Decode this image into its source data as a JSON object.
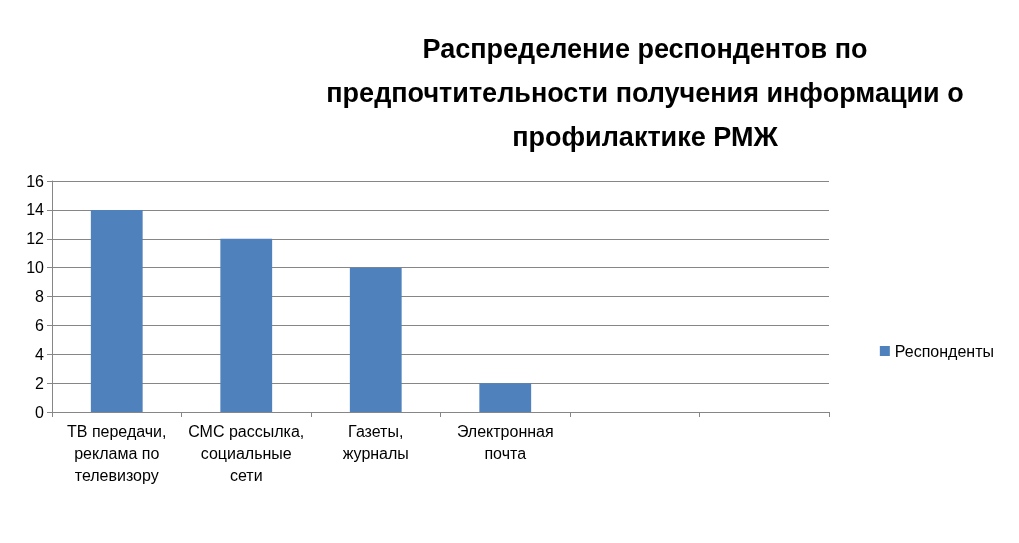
{
  "chart_data": {
    "type": "bar",
    "title": "Распределение респондентов по предпочтительности получения информации о профилактике РМЖ",
    "categories": [
      "ТВ передачи, реклама по телевизору",
      "СМС рассылка, социальные сети",
      "Газеты, журналы",
      "Электронная почта",
      null,
      null
    ],
    "series": [
      {
        "name": "Респонденты",
        "color": "#4f81bd",
        "values": [
          14,
          12,
          10,
          2,
          null,
          null
        ]
      }
    ],
    "ylim": [
      0,
      16
    ],
    "yticks": [
      0,
      2,
      4,
      6,
      8,
      10,
      12,
      14,
      16
    ],
    "grid": "y",
    "legend": "right"
  }
}
